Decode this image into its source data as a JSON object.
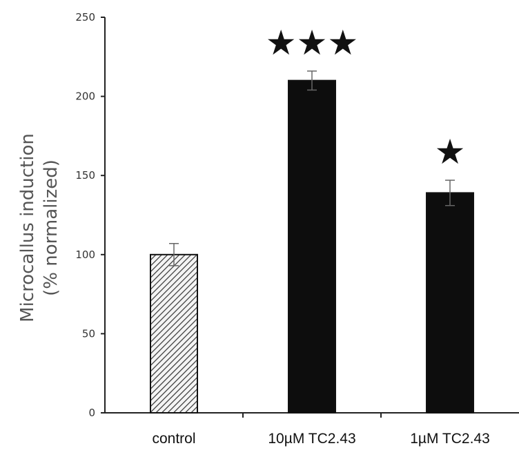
{
  "chart_data": {
    "type": "bar",
    "title": "",
    "xlabel": "",
    "ylabel_lines": [
      "Microcallus induction",
      "(% normalized)"
    ],
    "categories": [
      "control",
      "10µM TC2.43",
      "1µM TC2.43"
    ],
    "values": [
      100,
      210,
      139
    ],
    "errors": [
      7,
      6,
      8
    ],
    "significance": [
      "",
      "★★★",
      "★"
    ],
    "bar_fills": [
      "hatched",
      "solid",
      "solid"
    ],
    "ylim": [
      0,
      250
    ],
    "yticks": [
      0,
      50,
      100,
      150,
      200,
      250
    ],
    "grid": false,
    "legend": "none",
    "colors": {
      "bar": "#0d0d0d",
      "hatch_stroke": "#333333",
      "axis": "#222222"
    }
  }
}
